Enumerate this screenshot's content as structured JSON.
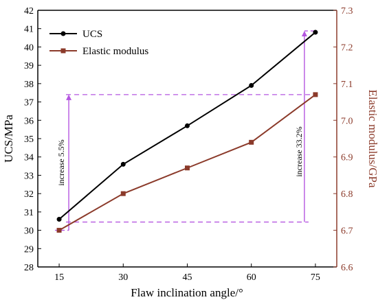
{
  "chart_data": {
    "type": "line",
    "xlabel": "Flaw inclination angle/°",
    "ylabel_left": "UCS/MPa",
    "ylabel_right": "Elastic modulus/GPa",
    "x": [
      15,
      30,
      45,
      60,
      75
    ],
    "xticks": [
      "15",
      "30",
      "45",
      "60",
      "75"
    ],
    "ylim_left": [
      28,
      42
    ],
    "yticks_left": [
      "28",
      "29",
      "30",
      "31",
      "32",
      "33",
      "34",
      "35",
      "36",
      "37",
      "38",
      "39",
      "40",
      "41",
      "42"
    ],
    "ylim_right": [
      6.6,
      7.3
    ],
    "yticks_right": [
      "6.6",
      "6.7",
      "6.8",
      "6.9",
      "7.0",
      "7.1",
      "7.2",
      "7.3"
    ],
    "series": [
      {
        "name": "UCS",
        "axis": "left",
        "values": [
          30.6,
          33.6,
          35.7,
          37.9,
          40.8
        ],
        "color": "#000000",
        "marker": "circle"
      },
      {
        "name": "Elastic modulus",
        "axis": "right",
        "values": [
          6.7,
          6.8,
          6.87,
          6.94,
          7.07
        ],
        "color": "#8b3a2a",
        "marker": "square"
      }
    ],
    "annotations": [
      {
        "text": "increase 5.5%",
        "color": "#b455e0"
      },
      {
        "text": "increase 33.2%",
        "color": "#b455e0"
      }
    ],
    "legend_position": "top-left",
    "grid": false
  }
}
